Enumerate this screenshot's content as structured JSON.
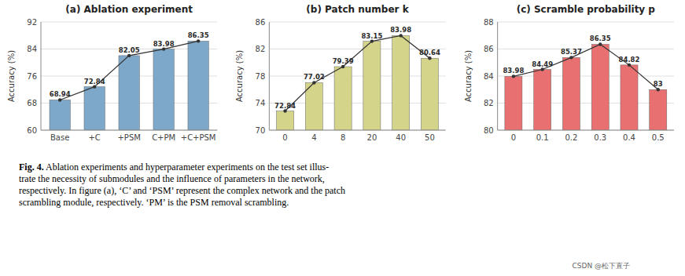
{
  "chart_data": [
    {
      "type": "bar",
      "title": "(a) Ablation experiment",
      "categories": [
        "Base",
        "+C",
        "+PSM",
        "C+PM",
        "+C+PSM"
      ],
      "series": [
        {
          "type": "bar",
          "color": "#7da8c9",
          "values": [
            68.94,
            72.84,
            82.05,
            83.98,
            86.35
          ]
        },
        {
          "type": "line",
          "color": "#333333",
          "marker": "circle",
          "values": [
            68.94,
            72.84,
            82.05,
            83.98,
            86.35
          ]
        }
      ],
      "ylim": [
        60,
        92
      ],
      "yticks": [
        60,
        68,
        76,
        84,
        92
      ],
      "ylabel": "Accuracy (%)",
      "grid": true,
      "data_labels": true
    },
    {
      "type": "bar",
      "title": "(b) Patch number k",
      "categories": [
        "0",
        "4",
        "8",
        "20",
        "40",
        "50"
      ],
      "series": [
        {
          "type": "bar",
          "color": "#d4d48a",
          "values": [
            72.84,
            77.02,
            79.39,
            83.15,
            83.98,
            80.64
          ]
        },
        {
          "type": "line",
          "color": "#333333",
          "marker": "circle",
          "values": [
            72.84,
            77.02,
            79.39,
            83.15,
            83.98,
            80.64
          ]
        }
      ],
      "ylim": [
        70,
        86
      ],
      "yticks": [
        70,
        74,
        78,
        82,
        86
      ],
      "ylabel": "Accuracy (%)",
      "grid": true,
      "data_labels": true
    },
    {
      "type": "bar",
      "title": "(c) Scramble probability p",
      "categories": [
        "0",
        "0.1",
        "0.2",
        "0.3",
        "0.4",
        "0.5"
      ],
      "series": [
        {
          "type": "bar",
          "color": "#e87070",
          "values": [
            83.98,
            84.49,
            85.37,
            86.35,
            84.82,
            83.0
          ]
        },
        {
          "type": "line",
          "color": "#333333",
          "marker": "circle",
          "values": [
            83.98,
            84.49,
            85.37,
            86.35,
            84.82,
            83.0
          ]
        }
      ],
      "ylim": [
        80,
        88
      ],
      "yticks": [
        80,
        82,
        84,
        86,
        88
      ],
      "ylabel": "Accuracy (%)",
      "grid": true,
      "data_labels": true
    }
  ],
  "caption": {
    "label": "Fig. 4.",
    "text": " Ablation experiments and hyperparameter experiments on the test set illus-\ntrate the necessity of submodules and the influence of parameters in the network,\nrespectively. In figure (a), ‘C’ and ‘PSM’ represent the complex network and the patch\nscrambling module, respectively. ‘PM’ is the PSM removal scrambling."
  },
  "watermark": "CSDN @松下直子"
}
